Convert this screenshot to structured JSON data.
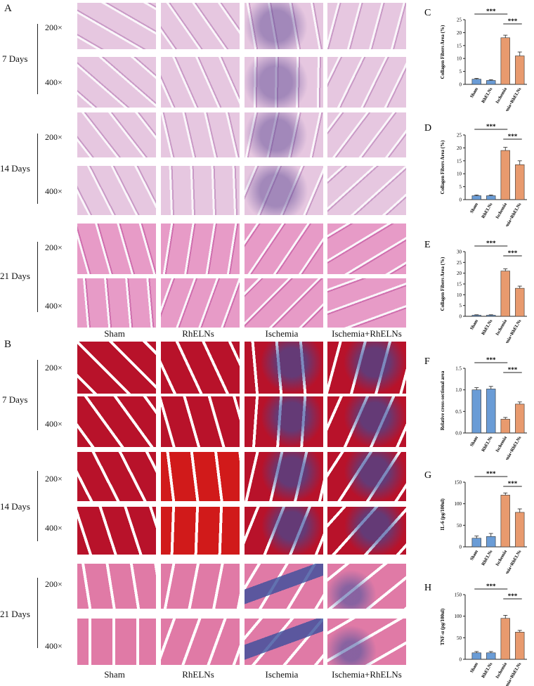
{
  "panels": {
    "A": "A",
    "B": "B",
    "C": "C",
    "D": "D",
    "E": "E",
    "F": "F",
    "G": "G",
    "H": "H"
  },
  "row_labels": {
    "days": [
      "7 Days",
      "14 Days",
      "21 Days"
    ],
    "mags": [
      "200×",
      "400×"
    ]
  },
  "groups": [
    "Sham",
    "RhELNs",
    "Ischemia",
    "Ischemia+RhELNs"
  ],
  "colors": {
    "blue_bar": "#6a9cd6",
    "orange_bar": "#e89a6e",
    "he_early": "#e6c7e0",
    "he_late": "#e79bc7",
    "masson_red": "#b8122a",
    "masson_blue": "#3a4e9c"
  },
  "chart_data": [
    {
      "id": "C",
      "type": "bar",
      "categories": [
        "Sham",
        "RhELNs",
        "Ischemia",
        "Ischemia+RhELNs"
      ],
      "values": [
        2,
        1.5,
        18,
        11
      ],
      "errors": [
        0.3,
        0.3,
        1,
        1.5
      ],
      "ylabel": "Collagen Fibers Area (%)",
      "ylim": [
        0,
        25
      ],
      "yticks": [
        "0",
        "5",
        "10",
        "15",
        "20",
        "25"
      ],
      "significance": [
        "***",
        "***"
      ]
    },
    {
      "id": "D",
      "type": "bar",
      "categories": [
        "Sham",
        "RhELNs",
        "Ischemia",
        "Ischemia+RhELNs"
      ],
      "values": [
        1.5,
        1.5,
        19,
        13.5
      ],
      "errors": [
        0.3,
        0.3,
        1.2,
        1.5
      ],
      "ylabel": "Collagen Fibers Area (%)",
      "ylim": [
        0,
        25
      ],
      "yticks": [
        "0",
        "5",
        "10",
        "15",
        "20",
        "25"
      ],
      "significance": [
        "***",
        "***"
      ]
    },
    {
      "id": "E",
      "type": "bar",
      "categories": [
        "Sham",
        "RhELNs",
        "Ischemia",
        "Ischemia+RhELNs"
      ],
      "values": [
        0.5,
        0.5,
        21,
        13
      ],
      "errors": [
        0.2,
        0.2,
        1,
        1
      ],
      "ylabel": "Collagen Fibers Area (%)",
      "ylim": [
        0,
        30
      ],
      "yticks": [
        "0",
        "5",
        "10",
        "15",
        "20",
        "25",
        "30"
      ],
      "significance": [
        "***",
        "***"
      ]
    },
    {
      "id": "F",
      "type": "bar",
      "categories": [
        "Sham",
        "RhELNs",
        "Ischemia",
        "Ischemia+RhELNs"
      ],
      "values": [
        1.0,
        1.02,
        0.32,
        0.67
      ],
      "errors": [
        0.05,
        0.06,
        0.04,
        0.05
      ],
      "ylabel": "Relative cross-sectional area",
      "ylim": [
        0,
        1.5
      ],
      "yticks": [
        "0.0",
        "0.5",
        "1.0",
        "1.5"
      ],
      "significance": [
        "***",
        "***"
      ]
    },
    {
      "id": "G",
      "type": "bar",
      "categories": [
        "Sham",
        "RhELNs",
        "Ischemia",
        "Ischemia+RhELNs"
      ],
      "values": [
        20,
        24,
        120,
        80
      ],
      "errors": [
        5,
        7,
        5,
        8
      ],
      "ylabel": "IL-6 (pg/100ul)",
      "ylim": [
        0,
        150
      ],
      "yticks": [
        "0",
        "50",
        "100",
        "150"
      ],
      "significance": [
        "***",
        "***"
      ]
    },
    {
      "id": "H",
      "type": "bar",
      "categories": [
        "Sham",
        "RhELNs",
        "Ischemia",
        "Ischemia+RhELNs"
      ],
      "values": [
        15,
        15,
        95,
        63
      ],
      "errors": [
        3,
        3,
        7,
        4
      ],
      "ylabel": "TNF-α (pg/100ul)",
      "ylim": [
        0,
        150
      ],
      "yticks": [
        "0",
        "50",
        "100",
        "150"
      ],
      "significance": [
        "***",
        "***"
      ]
    }
  ]
}
